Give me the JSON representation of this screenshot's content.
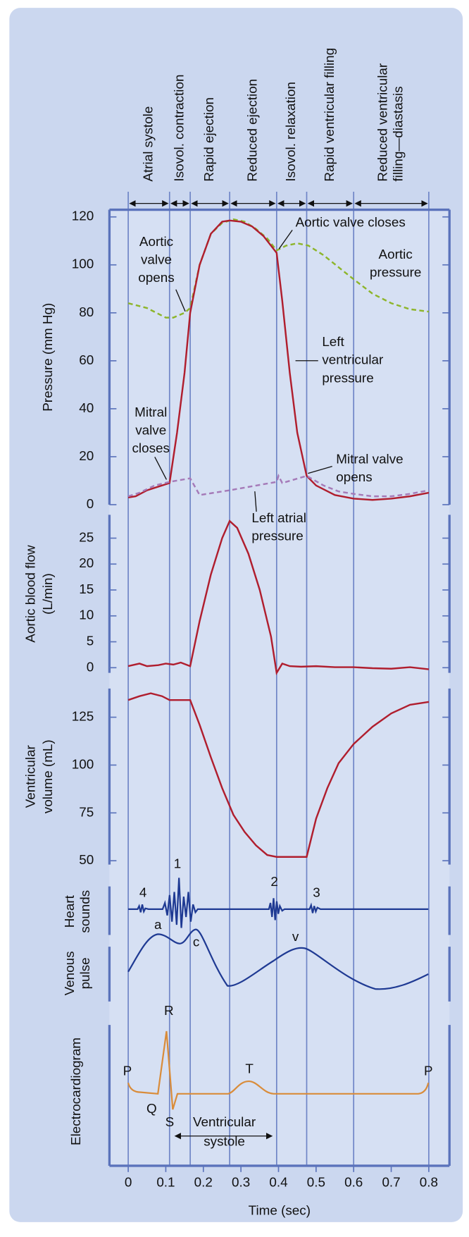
{
  "chart_data": {
    "type": "line",
    "x_label": "Time (sec)",
    "xlim": [
      -0.05,
      0.855
    ],
    "xticks": [
      0,
      0.1,
      0.2,
      0.3,
      0.4,
      0.5,
      0.6,
      0.7,
      0.8
    ],
    "phase_bounds": [
      0,
      0.11,
      0.165,
      0.27,
      0.395,
      0.475,
      0.6,
      0.8
    ],
    "phases": [
      [
        "Atrial systole"
      ],
      [
        "Isovol. contraction"
      ],
      [
        "Rapid ejection"
      ],
      [
        "Reduced ejection"
      ],
      [
        "Isovol. relaxation"
      ],
      [
        "Rapid ventricular filling"
      ],
      [
        "Reduced ventricular",
        "filling—diastasis"
      ]
    ],
    "panels": [
      {
        "y_label": [
          "Pressure (mm Hg)"
        ],
        "ylim": [
          0,
          123
        ],
        "yticks": [
          0,
          20,
          40,
          60,
          80,
          100,
          120
        ],
        "series": [
          {
            "name": "Aortic pressure",
            "color": "#8db52a",
            "style": "dashed",
            "x": [
              0,
              0.05,
              0.1,
              0.12,
              0.15,
              0.165,
              0.19,
              0.22,
              0.25,
              0.28,
              0.31,
              0.34,
              0.37,
              0.395,
              0.42,
              0.45,
              0.48,
              0.52,
              0.56,
              0.6,
              0.65,
              0.7,
              0.75,
              0.8
            ],
            "values": [
              84,
              82,
              78,
              78,
              80,
              82,
              100,
              113,
              117.5,
              119,
              118,
              115,
              111,
              106,
              108,
              109,
              108,
              104,
              99,
              94,
              88,
              84,
              81.5,
              80.5
            ]
          },
          {
            "name": "Left ventricular pressure",
            "color": "#b01e2e",
            "style": "solid",
            "x": [
              0,
              0.02,
              0.05,
              0.08,
              0.11,
              0.13,
              0.15,
              0.165,
              0.19,
              0.22,
              0.25,
              0.27,
              0.3,
              0.33,
              0.36,
              0.395,
              0.41,
              0.43,
              0.45,
              0.475,
              0.5,
              0.55,
              0.6,
              0.65,
              0.7,
              0.75,
              0.8
            ],
            "values": [
              3,
              3.5,
              6,
              7.5,
              9,
              30,
              55,
              80,
              100,
              113,
              118,
              118.5,
              118,
              116,
              112,
              105,
              85,
              55,
              30,
              12,
              8,
              4,
              2.5,
              2,
              2.5,
              3.5,
              5
            ]
          },
          {
            "name": "Left atrial pressure",
            "color": "#a57ab8",
            "style": "dashed",
            "x": [
              0,
              0.03,
              0.07,
              0.11,
              0.165,
              0.19,
              0.27,
              0.395,
              0.4,
              0.41,
              0.475,
              0.52,
              0.56,
              0.6,
              0.65,
              0.7,
              0.75,
              0.8
            ],
            "values": [
              3.5,
              5,
              8,
              9.5,
              11,
              4,
              6,
              9.5,
              12,
              9,
              12,
              8,
              5.5,
              4.5,
              3.5,
              3.5,
              4.5,
              6
            ]
          }
        ],
        "annotations": [
          [
            "Aortic",
            "valve",
            "opens"
          ],
          [
            "Aortic valve closes"
          ],
          [
            "Aortic",
            "pressure"
          ],
          [
            "Left",
            "ventricular",
            "pressure"
          ],
          [
            "Mitral",
            "valve",
            "closes"
          ],
          [
            "Mitral valve",
            "opens"
          ],
          [
            "Left atrial",
            "pressure"
          ]
        ]
      },
      {
        "y_label": [
          "Aortic blood flow",
          "(L/min)"
        ],
        "ylim": [
          -1,
          29.5
        ],
        "yticks": [
          0,
          5,
          10,
          15,
          20,
          25
        ],
        "series": [
          {
            "name": "Aortic blood flow",
            "color": "#b01e2e",
            "style": "solid",
            "x": [
              0,
              0.03,
              0.05,
              0.08,
              0.1,
              0.12,
              0.14,
              0.165,
              0.19,
              0.22,
              0.25,
              0.27,
              0.29,
              0.32,
              0.35,
              0.38,
              0.395,
              0.41,
              0.43,
              0.46,
              0.5,
              0.55,
              0.6,
              0.65,
              0.7,
              0.75,
              0.8
            ],
            "values": [
              0.3,
              0.8,
              0.3,
              0.5,
              0.8,
              0.6,
              1,
              0.3,
              9,
              18,
              25,
              28.3,
              27,
              22,
              15,
              6,
              -1,
              0.8,
              0.3,
              0.2,
              0.3,
              0.1,
              0.1,
              -0.1,
              -0.2,
              0.1,
              -0.3
            ]
          }
        ]
      },
      {
        "y_label": [
          "Ventricular",
          "volume (mL)"
        ],
        "ylim": [
          48,
          140
        ],
        "yticks": [
          50,
          75,
          100,
          125
        ],
        "series": [
          {
            "name": "Ventricular volume",
            "color": "#b01e2e",
            "style": "solid",
            "x": [
              0,
              0.03,
              0.06,
              0.09,
              0.11,
              0.165,
              0.19,
              0.22,
              0.25,
              0.28,
              0.31,
              0.34,
              0.37,
              0.395,
              0.475,
              0.5,
              0.53,
              0.56,
              0.6,
              0.65,
              0.7,
              0.75,
              0.8
            ],
            "values": [
              134,
              136,
              137.5,
              136,
              134,
              134,
              121,
              104,
              88,
              74,
              65,
              58,
              53,
              52,
              52,
              72,
              88,
              101,
              111,
              120,
              127,
              131.5,
              133
            ]
          }
        ]
      }
    ],
    "traces": {
      "heart_sounds": {
        "label": [
          "Heart",
          "sounds"
        ],
        "marks": [
          "4",
          "1",
          "2",
          "3"
        ]
      },
      "venous_pulse": {
        "label": [
          "Venous",
          "pulse"
        ],
        "marks": [
          "a",
          "c",
          "v"
        ]
      },
      "ecg": {
        "label": [
          "Electrocardiogram"
        ],
        "marks": [
          "P",
          "R",
          "Q",
          "S",
          "T",
          "P"
        ],
        "systole": [
          "Ventricular",
          "systole"
        ]
      }
    }
  }
}
